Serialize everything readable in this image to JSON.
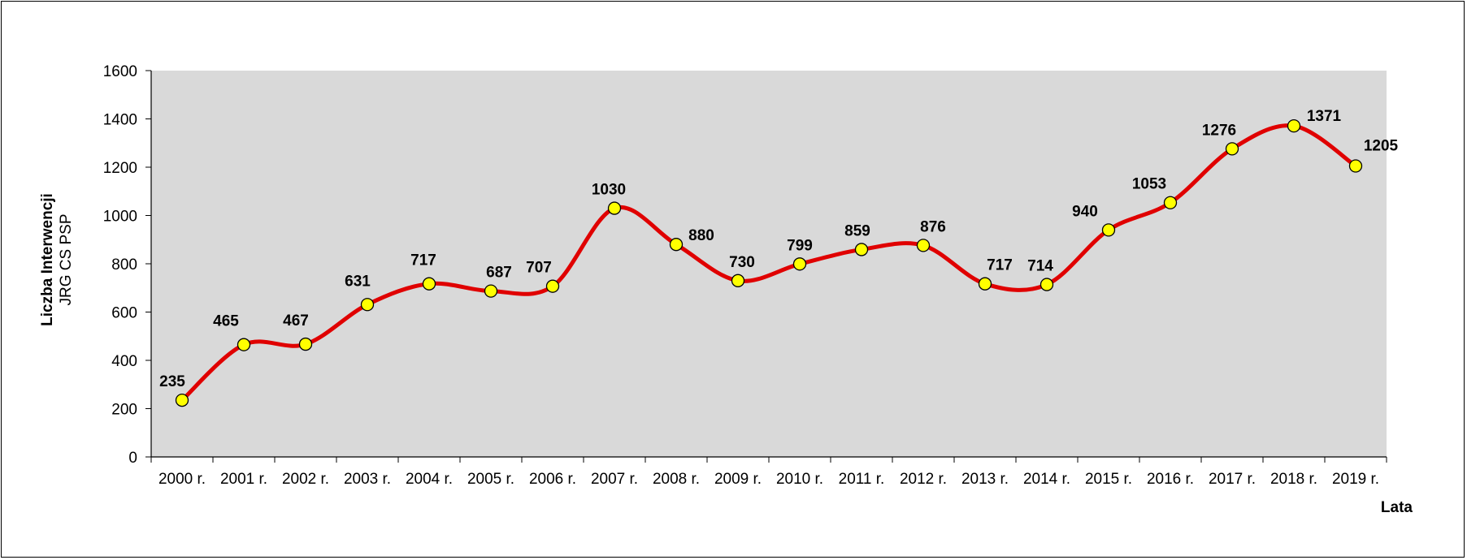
{
  "chart_data": {
    "type": "line",
    "categories": [
      "2000 r.",
      "2001 r.",
      "2002 r.",
      "2003 r.",
      "2004 r.",
      "2005 r.",
      "2006 r.",
      "2007 r.",
      "2008 r.",
      "2009 r.",
      "2010 r.",
      "2011 r.",
      "2012 r.",
      "2013 r.",
      "2014 r.",
      "2015 r.",
      "2016 r.",
      "2017 r.",
      "2018 r.",
      "2019 r."
    ],
    "series": [
      {
        "values": [
          235,
          465,
          467,
          631,
          717,
          687,
          707,
          1030,
          880,
          730,
          799,
          859,
          876,
          717,
          714,
          940,
          1053,
          1276,
          1371,
          1205
        ]
      }
    ],
    "data_labels": [
      "235",
      "465",
      "467",
      "631",
      "717",
      "687",
      "707",
      "1030",
      "880",
      "730",
      "799",
      "859",
      "876",
      "717",
      "714",
      "940",
      "1053",
      "1276",
      "1371",
      "1205"
    ],
    "yticks": [
      "0",
      "200",
      "400",
      "600",
      "800",
      "1000",
      "1200",
      "1400",
      "1600"
    ],
    "ylim": [
      0,
      1600
    ],
    "ylabel_line1": "Liczba Interwencji",
    "ylabel_line2": "JRG CS PSP",
    "xlabel": "Lata",
    "grid": false,
    "line_color": "#E00000",
    "marker_color": "#FFFF00",
    "plot_background": "#D9D9D9",
    "smooth": true
  }
}
